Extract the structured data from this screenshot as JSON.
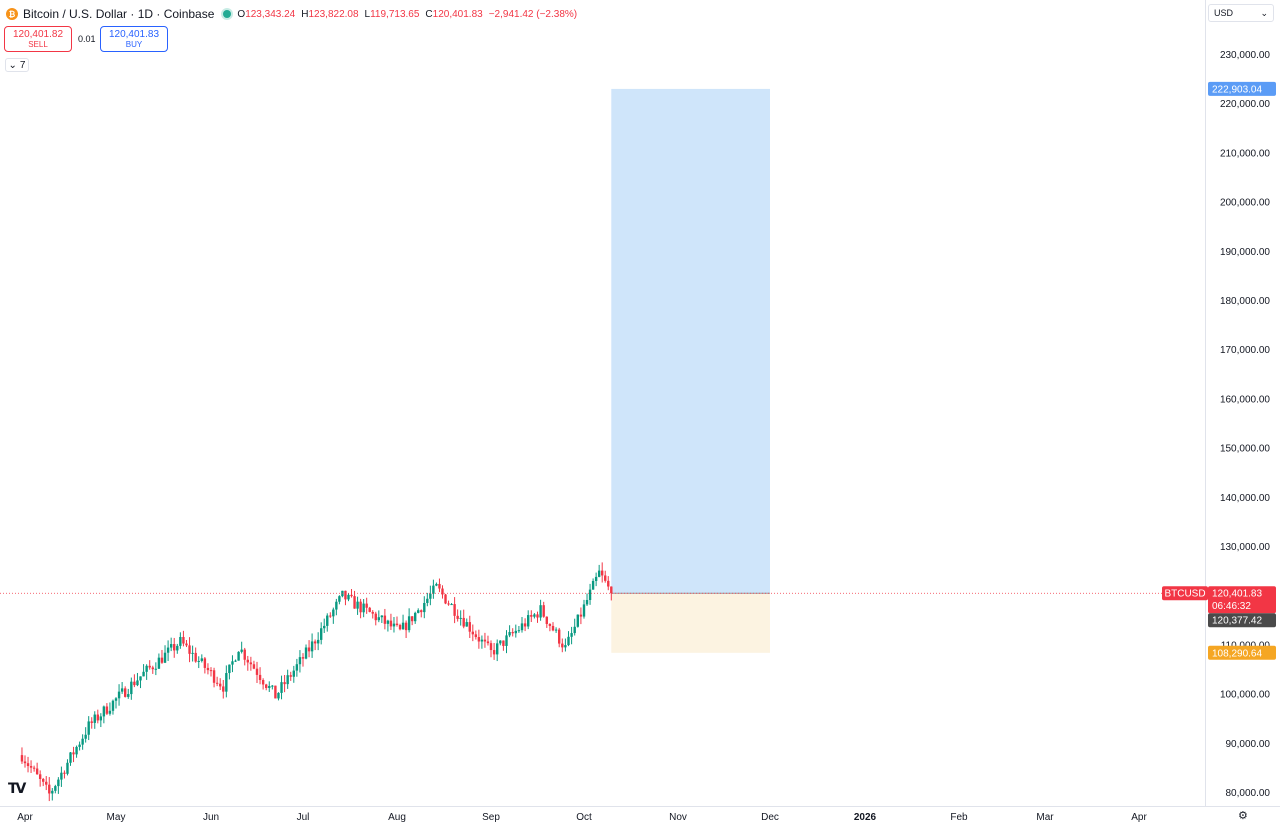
{
  "header": {
    "title": "Bitcoin / U.S. Dollar · 1D · Coinbase",
    "coin_icon": "bitcoin-icon",
    "ohlc": [
      {
        "k": "O",
        "v": "123,343.24"
      },
      {
        "k": "H",
        "v": "123,822.08"
      },
      {
        "k": "L",
        "v": "119,713.65"
      },
      {
        "k": "C",
        "v": "120,401.83"
      }
    ],
    "change": "−2,941.42 (−2.38%)"
  },
  "trade": {
    "sell_price": "120,401.82",
    "sell_label": "SELL",
    "buy_price": "120,401.83",
    "buy_label": "BUY",
    "spread": "0.01"
  },
  "indicators_toggle": {
    "icon": "chevron-down-icon",
    "count": "7"
  },
  "currency": {
    "label": "USD",
    "icon": "chevron-down-icon"
  },
  "colors": {
    "up": "#089981",
    "down": "#f23645",
    "profit": "#cfe5fa",
    "loss": "#fcf3e1",
    "target_tag": "#5b9cf6",
    "stop_tag": "#f5a623",
    "last_tag": "#f23645",
    "ma_tag": "#4a4a4a"
  },
  "chart_data": {
    "type": "candlestick",
    "symbol": "BTCUSD",
    "ylim": [
      77000,
      235000
    ],
    "y_ticks": [
      80000,
      90000,
      100000,
      110000,
      120000,
      130000,
      140000,
      150000,
      160000,
      170000,
      180000,
      190000,
      200000,
      210000,
      220000,
      230000
    ],
    "y_tick_labels": [
      "80,000.00",
      "90,000.00",
      "100,000.00",
      "110,000.00",
      "120,000.00",
      "130,000.00",
      "140,000.00",
      "150,000.00",
      "160,000.00",
      "170,000.00",
      "180,000.00",
      "190,000.00",
      "200,000.00",
      "210,000.00",
      "220,000.00",
      "230,000.00"
    ],
    "x_start": "2025-03-31",
    "x_end": "2026-04-30",
    "x_labels": [
      {
        "date": "2025-04-01",
        "label": "Apr"
      },
      {
        "date": "2025-05-01",
        "label": "May"
      },
      {
        "date": "2025-06-01",
        "label": "Jun"
      },
      {
        "date": "2025-07-01",
        "label": "Jul"
      },
      {
        "date": "2025-08-01",
        "label": "Aug"
      },
      {
        "date": "2025-09-01",
        "label": "Sep"
      },
      {
        "date": "2025-10-01",
        "label": "Oct"
      },
      {
        "date": "2025-11-01",
        "label": "Nov"
      },
      {
        "date": "2025-12-01",
        "label": "Dec"
      },
      {
        "date": "2026-01-01",
        "label": "2026"
      },
      {
        "date": "2026-02-01",
        "label": "Feb"
      },
      {
        "date": "2026-03-01",
        "label": "Mar"
      },
      {
        "date": "2026-04-01",
        "label": "Apr"
      }
    ],
    "grid": false,
    "candles_close": [
      {
        "date": "2025-03-31",
        "close": 87500
      },
      {
        "date": "2025-04-09",
        "close": 79500
      },
      {
        "date": "2025-04-22",
        "close": 93400
      },
      {
        "date": "2025-05-08",
        "close": 103000
      },
      {
        "date": "2025-05-22",
        "close": 110500
      },
      {
        "date": "2025-06-05",
        "close": 101500
      },
      {
        "date": "2025-06-10",
        "close": 109500
      },
      {
        "date": "2025-06-22",
        "close": 99500
      },
      {
        "date": "2025-07-03",
        "close": 109000
      },
      {
        "date": "2025-07-14",
        "close": 119800
      },
      {
        "date": "2025-08-02",
        "close": 112500
      },
      {
        "date": "2025-08-14",
        "close": 121500
      },
      {
        "date": "2025-09-01",
        "close": 108300
      },
      {
        "date": "2025-09-17",
        "close": 117000
      },
      {
        "date": "2025-09-25",
        "close": 109200
      },
      {
        "date": "2025-10-06",
        "close": 124500
      },
      {
        "date": "2025-10-10",
        "close": 120401.83
      }
    ],
    "position": {
      "start_date": "2025-10-10",
      "end_date": "2025-12-01",
      "entry": 120401.83,
      "target": 222903.04,
      "stop": 108290.64
    },
    "price_tags": {
      "target": "222,903.04",
      "symbol": "BTCUSD",
      "last": "120,401.83",
      "countdown": "06:46:32",
      "ma": "120,377.42",
      "stop": "108,290.64"
    }
  }
}
